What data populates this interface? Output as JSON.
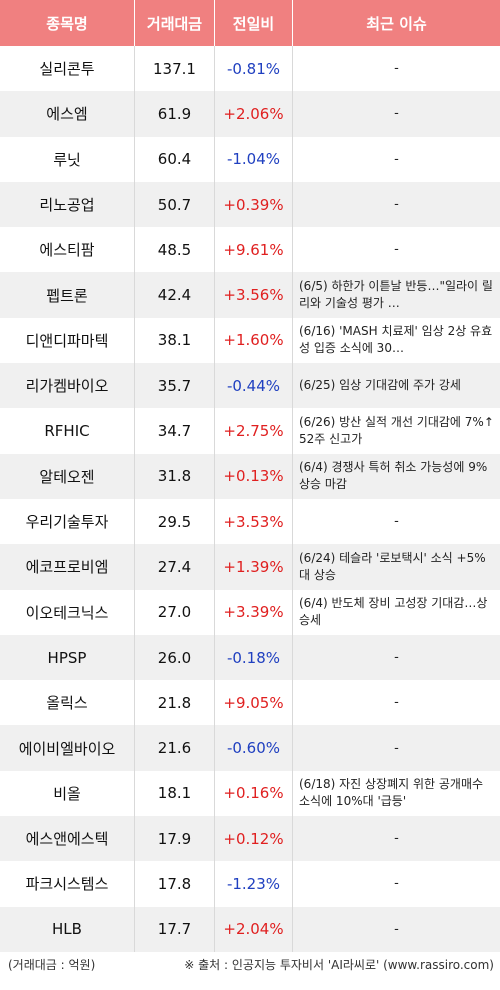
{
  "header": {
    "name": "종목명",
    "volume": "거래대금",
    "change": "전일비",
    "issue": "최근 이슈"
  },
  "rows": [
    {
      "name": "실리콘투",
      "volume": "137.1",
      "change": "-0.81%",
      "issue": "-"
    },
    {
      "name": "에스엠",
      "volume": "61.9",
      "change": "+2.06%",
      "issue": "-"
    },
    {
      "name": "루닛",
      "volume": "60.4",
      "change": "-1.04%",
      "issue": "-"
    },
    {
      "name": "리노공업",
      "volume": "50.7",
      "change": "+0.39%",
      "issue": "-"
    },
    {
      "name": "에스티팜",
      "volume": "48.5",
      "change": "+9.61%",
      "issue": "-"
    },
    {
      "name": "펩트론",
      "volume": "42.4",
      "change": "+3.56%",
      "issue": "(6/5) 하한가 이튿날 반등…\"일라이 릴리와 기술성 평가 …"
    },
    {
      "name": "디앤디파마텍",
      "volume": "38.1",
      "change": "+1.60%",
      "issue": "(6/16) 'MASH 치료제' 임상 2상 유효성 입증 소식에 30…"
    },
    {
      "name": "리가켐바이오",
      "volume": "35.7",
      "change": "-0.44%",
      "issue": "(6/25) 임상 기대감에 주가 강세"
    },
    {
      "name": "RFHIC",
      "volume": "34.7",
      "change": "+2.75%",
      "issue": "(6/26) 방산 실적 개선 기대감에 7%↑52주 신고가"
    },
    {
      "name": "알테오젠",
      "volume": "31.8",
      "change": "+0.13%",
      "issue": "(6/4) 경쟁사 특허 취소 가능성에 9% 상승 마감"
    },
    {
      "name": "우리기술투자",
      "volume": "29.5",
      "change": "+3.53%",
      "issue": "-"
    },
    {
      "name": "에코프로비엠",
      "volume": "27.4",
      "change": "+1.39%",
      "issue": "(6/24) 테슬라 '로보택시' 소식 +5%대 상승"
    },
    {
      "name": "이오테크닉스",
      "volume": "27.0",
      "change": "+3.39%",
      "issue": "(6/4) 반도체 장비 고성장 기대감…상승세"
    },
    {
      "name": "HPSP",
      "volume": "26.0",
      "change": "-0.18%",
      "issue": "-"
    },
    {
      "name": "올릭스",
      "volume": "21.8",
      "change": "+9.05%",
      "issue": "-"
    },
    {
      "name": "에이비엘바이오",
      "volume": "21.6",
      "change": "-0.60%",
      "issue": "-"
    },
    {
      "name": "비올",
      "volume": "18.1",
      "change": "+0.16%",
      "issue": "(6/18) 자진 상장폐지 위한 공개매수 소식에 10%대 '급등'"
    },
    {
      "name": "에스앤에스텍",
      "volume": "17.9",
      "change": "+0.12%",
      "issue": "-"
    },
    {
      "name": "파크시스템스",
      "volume": "17.8",
      "change": "-1.23%",
      "issue": "-"
    },
    {
      "name": "HLB",
      "volume": "17.7",
      "change": "+2.04%",
      "issue": "-"
    }
  ],
  "footer": {
    "unit": "(거래대금 : 억원)",
    "source": "※ 출처 : 인공지능 투자비서 'AI라씨로' (www.rassiro.com)"
  },
  "colors": {
    "header_bg": "#f08080",
    "up": "#e02020",
    "down": "#2040c0",
    "alt_row": "#f0f0f0"
  }
}
